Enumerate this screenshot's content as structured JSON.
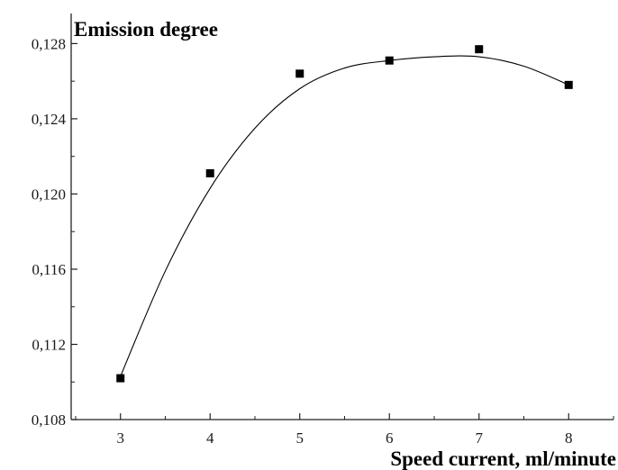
{
  "chart_data": {
    "type": "scatter",
    "title": "",
    "xlabel": "Speed current, ml/minute",
    "ylabel": "Emission degree",
    "x_ticks": [
      "3",
      "4",
      "5",
      "6",
      "7",
      "8"
    ],
    "y_ticks": [
      "0,108",
      "0,112",
      "0,116",
      "0,120",
      "0,124",
      "0,128"
    ],
    "xlim": [
      2.45,
      8.5
    ],
    "ylim": [
      0.108,
      0.1296
    ],
    "grid": false,
    "series": [
      {
        "points": [
          {
            "x": 3,
            "y": 0.1102
          },
          {
            "x": 4,
            "y": 0.1211
          },
          {
            "x": 5,
            "y": 0.1264
          },
          {
            "x": 6,
            "y": 0.1271
          },
          {
            "x": 7,
            "y": 0.1277
          },
          {
            "x": 8,
            "y": 0.1258
          }
        ],
        "marker": "square",
        "color": "#000000"
      }
    ],
    "fit_curve": {
      "kind": "smooth polynomial fit",
      "color": "#000000",
      "points": [
        {
          "x": 3.0,
          "y": 0.1103
        },
        {
          "x": 3.5,
          "y": 0.1159
        },
        {
          "x": 4.0,
          "y": 0.1203
        },
        {
          "x": 4.5,
          "y": 0.1235
        },
        {
          "x": 5.0,
          "y": 0.1256
        },
        {
          "x": 5.5,
          "y": 0.1267
        },
        {
          "x": 6.0,
          "y": 0.1271
        },
        {
          "x": 6.5,
          "y": 0.1273
        },
        {
          "x": 7.0,
          "y": 0.1273
        },
        {
          "x": 7.5,
          "y": 0.1268
        },
        {
          "x": 8.0,
          "y": 0.1258
        }
      ]
    }
  }
}
